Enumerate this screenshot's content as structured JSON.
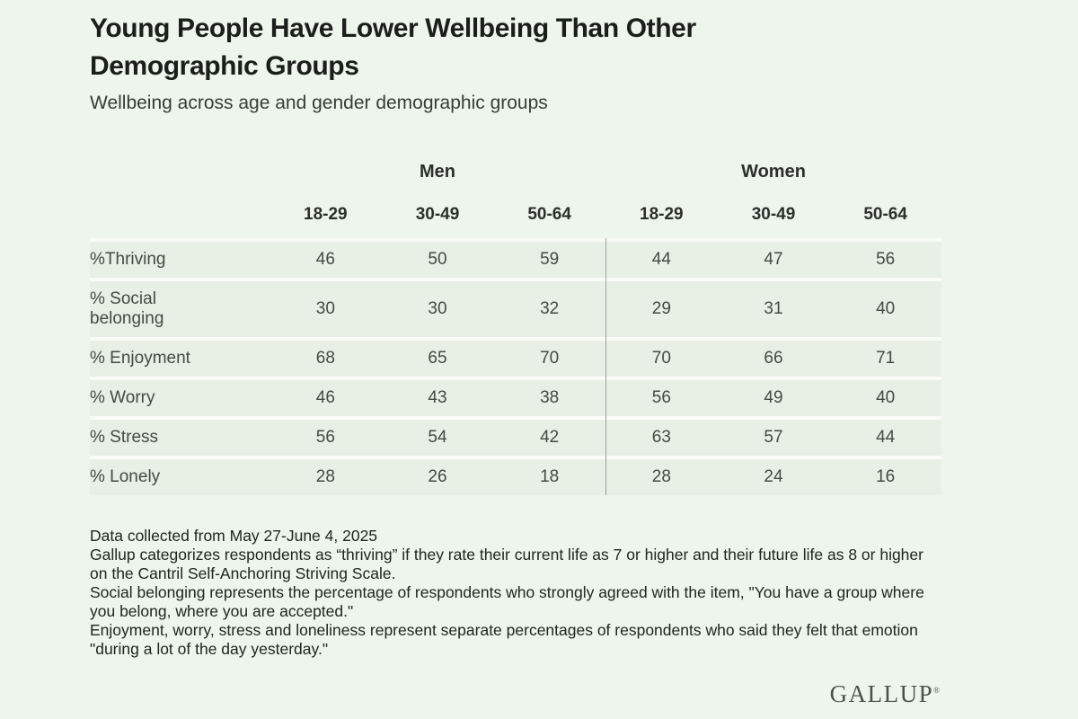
{
  "colors": {
    "page_bg": "#eef5ec",
    "row_bg": "#e8efe5",
    "row_separator": "#f9fcf6",
    "divider": "#9ba39b",
    "title_text": "#1b1e1b",
    "subtitle_text": "#383c38",
    "header_text": "#2c2f2c",
    "body_text": "#454a45",
    "note_text": "#212521",
    "logo_text": "#4a524c"
  },
  "header": {
    "title_lines": [
      "Young People Have Lower Wellbeing Than Other",
      "Demographic Groups"
    ],
    "subtitle": "Wellbeing across age and gender demographic groups"
  },
  "table": {
    "group_headers": [
      "Men",
      "Women"
    ],
    "col_headers": [
      "18-29",
      "30-49",
      "50-64",
      "18-29",
      "30-49",
      "50-64"
    ],
    "rows": [
      {
        "label": "%Thriving",
        "values": [
          46,
          50,
          59,
          44,
          47,
          56
        ]
      },
      {
        "label": "% Social belonging",
        "values": [
          30,
          30,
          32,
          29,
          31,
          40
        ]
      },
      {
        "label": "% Enjoyment",
        "values": [
          68,
          65,
          70,
          70,
          66,
          71
        ]
      },
      {
        "label": "% Worry",
        "values": [
          46,
          43,
          38,
          56,
          49,
          40
        ]
      },
      {
        "label": "% Stress",
        "values": [
          56,
          54,
          42,
          63,
          57,
          44
        ]
      },
      {
        "label": "% Lonely",
        "values": [
          28,
          26,
          18,
          28,
          24,
          16
        ]
      }
    ]
  },
  "notes": [
    "Data collected from May 27-June 4, 2025",
    "Gallup categorizes respondents as “thriving” if they rate their current life as 7 or higher and their future life as 8 or higher on the Cantril Self-Anchoring Striving Scale.",
    "Social belonging represents the percentage of respondents who strongly agreed with the item, \"You have a group where you belong, where you are accepted.\"",
    "Enjoyment, worry, stress and loneliness represent separate percentages of respondents who said they felt that emotion \"during a lot of the day yesterday.\""
  ],
  "footer": {
    "logo": "GALLUP",
    "logo_mark": "®"
  },
  "chart_data": {
    "type": "table",
    "title": "Young People Have Lower Wellbeing Than Other Demographic Groups",
    "subtitle": "Wellbeing across age and gender demographic groups",
    "column_groups": [
      {
        "label": "Men",
        "columns": [
          "18-29",
          "30-49",
          "50-64"
        ]
      },
      {
        "label": "Women",
        "columns": [
          "18-29",
          "30-49",
          "50-64"
        ]
      }
    ],
    "categories": [
      "Men 18-29",
      "Men 30-49",
      "Men 50-64",
      "Women 18-29",
      "Women 30-49",
      "Women 50-64"
    ],
    "series": [
      {
        "name": "%Thriving",
        "values": [
          46,
          50,
          59,
          44,
          47,
          56
        ]
      },
      {
        "name": "% Social belonging",
        "values": [
          30,
          30,
          32,
          29,
          31,
          40
        ]
      },
      {
        "name": "% Enjoyment",
        "values": [
          68,
          65,
          70,
          70,
          66,
          71
        ]
      },
      {
        "name": "% Worry",
        "values": [
          46,
          43,
          38,
          56,
          49,
          40
        ]
      },
      {
        "name": "% Stress",
        "values": [
          56,
          54,
          42,
          63,
          57,
          44
        ]
      },
      {
        "name": "% Lonely",
        "values": [
          28,
          26,
          18,
          28,
          24,
          16
        ]
      }
    ],
    "units": "percent",
    "source_note": "Data collected from May 27-June 4, 2025"
  }
}
